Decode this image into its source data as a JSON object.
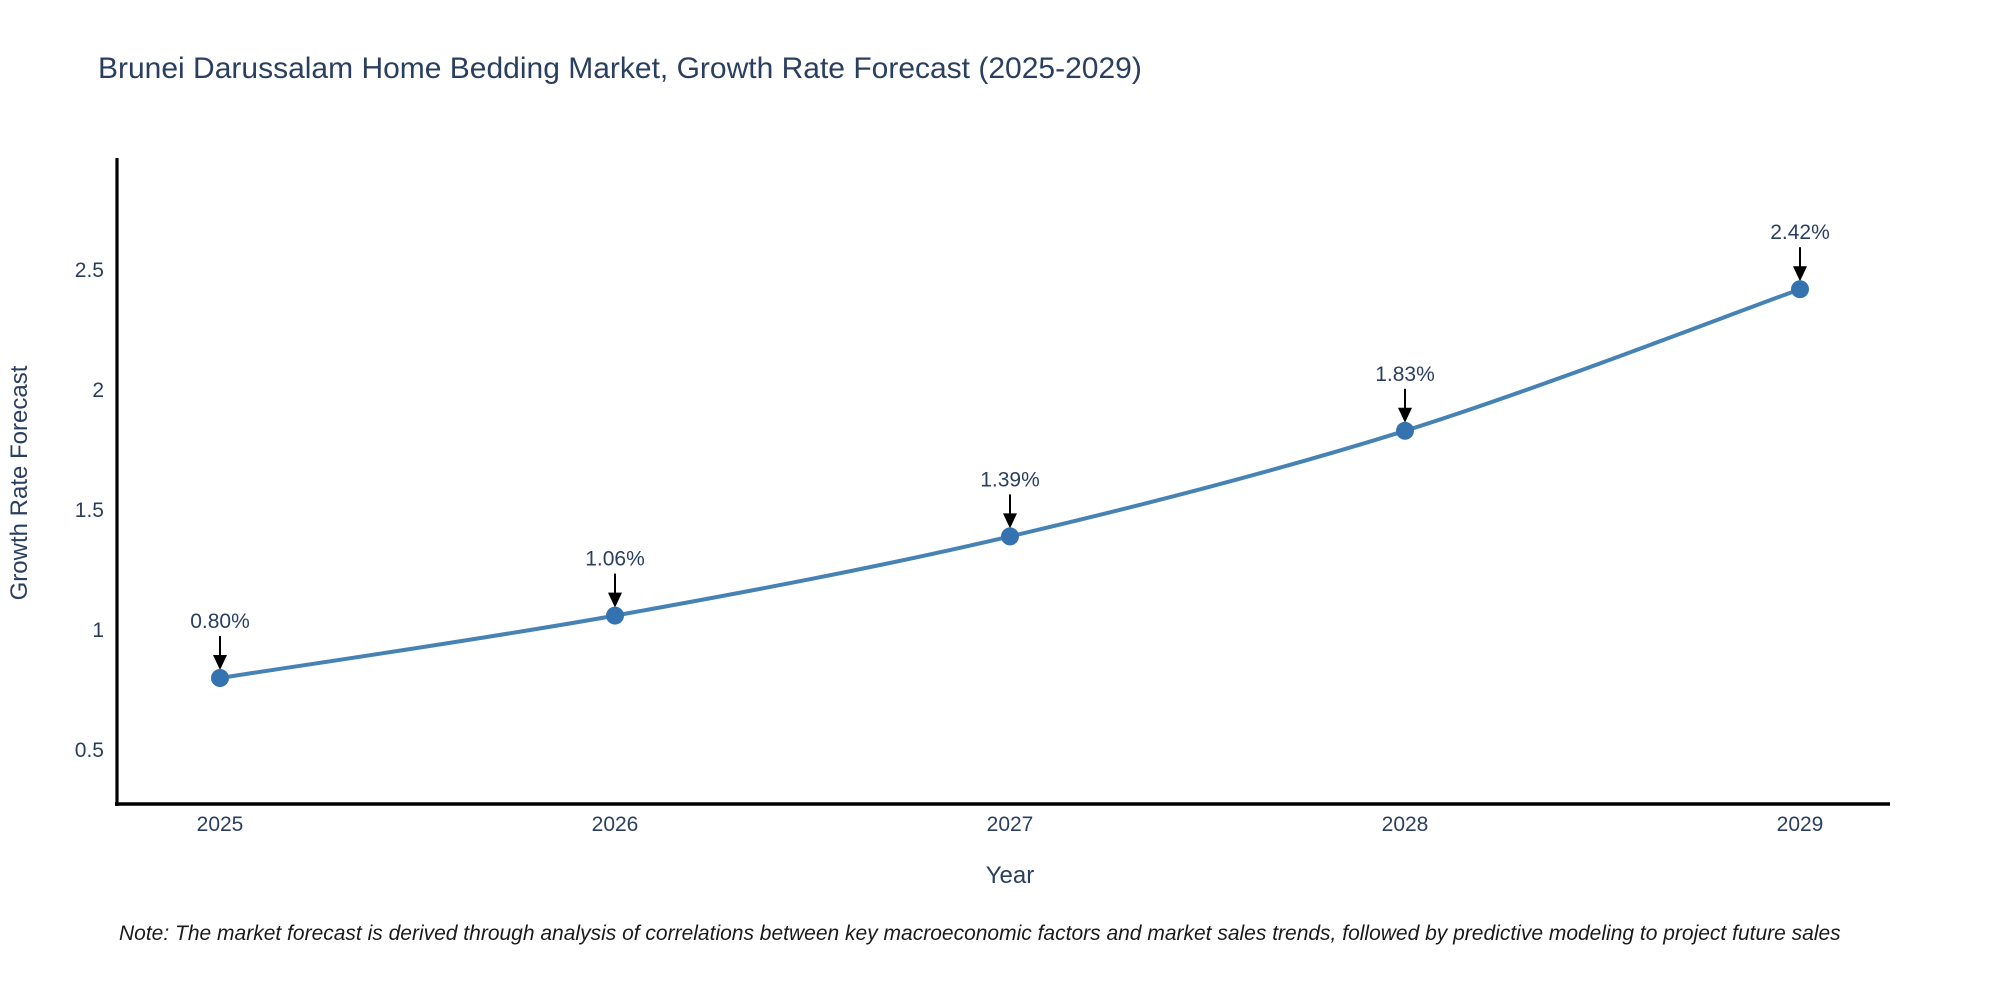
{
  "title": "Brunei Darussalam Home Bedding Market, Growth Rate Forecast (2025-2029)",
  "note": "Note: The market forecast is derived through analysis of correlations between key macroeconomic factors and market sales trends, followed by predictive modeling to project future sales",
  "chart_data": {
    "type": "line",
    "title": "Brunei Darussalam Home Bedding Market, Growth Rate Forecast (2025-2029)",
    "xlabel": "Year",
    "ylabel": "Growth Rate Forecast",
    "x": [
      2025,
      2026,
      2027,
      2028,
      2029
    ],
    "series": [
      {
        "name": "Growth Rate Forecast",
        "values": [
          0.8,
          1.06,
          1.39,
          1.83,
          2.42
        ]
      }
    ],
    "point_labels": [
      "0.80%",
      "1.06%",
      "1.39%",
      "1.83%",
      "2.42%"
    ],
    "yticks": [
      "0.5",
      "1",
      "1.5",
      "2",
      "2.5"
    ],
    "ytick_values": [
      0.5,
      1,
      1.5,
      2,
      2.5
    ],
    "xticks": [
      "2025",
      "2026",
      "2027",
      "2028",
      "2029"
    ],
    "ylim": [
      0.27,
      2.96
    ],
    "xlim": [
      2024.73,
      2029.23
    ],
    "grid": false,
    "legend_visible": false,
    "line_shape": "spline",
    "colors": {
      "line": "#4682b4",
      "marker": "#3572b0",
      "axis_line": "#000000",
      "text": "#2a3f5f",
      "annotation_arrow": "#000000",
      "note_text": "#1a1a1a"
    }
  }
}
